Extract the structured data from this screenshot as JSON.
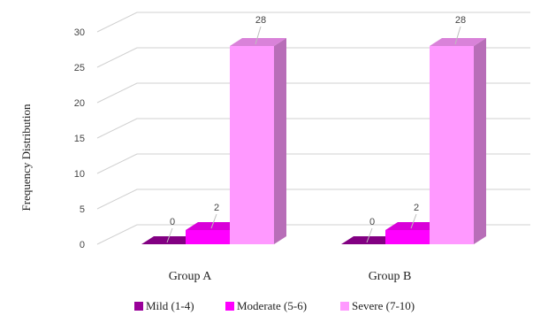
{
  "chart_data": {
    "type": "bar",
    "title": "",
    "xlabel": "",
    "ylabel": "Frequency Distribution",
    "ylim": [
      0,
      30
    ],
    "yticks": [
      "0",
      "5",
      "10",
      "15",
      "20",
      "25",
      "30"
    ],
    "grid": true,
    "legend_position": "bottom",
    "categories": [
      "Group A",
      "Group B"
    ],
    "series": [
      {
        "name": "Mild (1-4)",
        "values": [
          0,
          0
        ],
        "color": "#990099"
      },
      {
        "name": "Moderate (5-6)",
        "values": [
          2,
          2
        ],
        "color": "#ff00ff"
      },
      {
        "name": "Severe (7-10)",
        "values": [
          28,
          28
        ],
        "color": "#ff99ff"
      }
    ]
  }
}
